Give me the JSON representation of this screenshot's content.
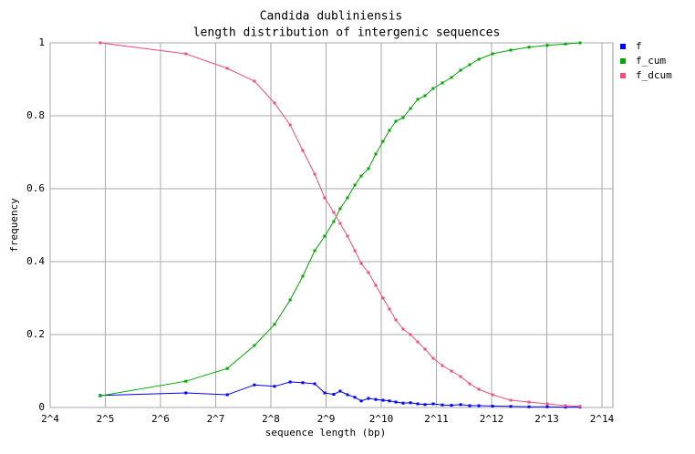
{
  "chart_data": {
    "type": "line",
    "title": "Candida dubliniensis",
    "subtitle": "length distribution of intergenic sequences",
    "x_label": "sequence length (bp)",
    "y_label": "frequency",
    "x_scale": "log2",
    "grid": true,
    "legend": "right",
    "x": [
      30,
      88,
      148,
      208,
      268,
      326,
      382,
      444,
      503,
      564,
      611,
      670,
      735,
      796,
      872,
      956,
      1048,
      1135,
      1230,
      1348,
      1478,
      1619,
      1774,
      1967,
      2206,
      2474,
      2775,
      3110,
      3490,
      4145,
      5210,
      6553,
      8237,
      10363,
      12444
    ],
    "series": [
      {
        "name": "f",
        "color": "#0000ff",
        "values": [
          0.033,
          0.04,
          0.035,
          0.062,
          0.058,
          0.07,
          0.068,
          0.065,
          0.04,
          0.036,
          0.045,
          0.035,
          0.028,
          0.018,
          0.025,
          0.022,
          0.02,
          0.018,
          0.015,
          0.012,
          0.013,
          0.01,
          0.008,
          0.01,
          0.007,
          0.006,
          0.008,
          0.005,
          0.005,
          0.004,
          0.003,
          0.002,
          0.002,
          0.001,
          0.001
        ]
      },
      {
        "name": "f_cum",
        "color": "#00a800",
        "values": [
          0.032,
          0.072,
          0.107,
          0.17,
          0.228,
          0.295,
          0.36,
          0.43,
          0.47,
          0.51,
          0.545,
          0.575,
          0.61,
          0.635,
          0.655,
          0.695,
          0.73,
          0.76,
          0.785,
          0.795,
          0.82,
          0.845,
          0.855,
          0.875,
          0.89,
          0.905,
          0.925,
          0.94,
          0.955,
          0.97,
          0.98,
          0.988,
          0.993,
          0.997,
          1.0
        ]
      },
      {
        "name": "f_dcum",
        "color": "#f0507a",
        "values": [
          1.0,
          0.97,
          0.93,
          0.895,
          0.835,
          0.775,
          0.705,
          0.64,
          0.575,
          0.535,
          0.505,
          0.47,
          0.43,
          0.395,
          0.37,
          0.335,
          0.3,
          0.27,
          0.24,
          0.215,
          0.2,
          0.18,
          0.16,
          0.135,
          0.115,
          0.1,
          0.085,
          0.065,
          0.05,
          0.035,
          0.02,
          0.015,
          0.01,
          0.005,
          0.003
        ]
      }
    ],
    "xlim": [
      16,
      16384
    ],
    "xticks": [
      {
        "value": 16,
        "label": "2^4"
      },
      {
        "value": 32,
        "label": "2^5"
      },
      {
        "value": 64,
        "label": "2^6"
      },
      {
        "value": 128,
        "label": "2^7"
      },
      {
        "value": 256,
        "label": "2^8"
      },
      {
        "value": 512,
        "label": "2^9"
      },
      {
        "value": 1024,
        "label": "2^10"
      },
      {
        "value": 2048,
        "label": "2^11"
      },
      {
        "value": 4096,
        "label": "2^12"
      },
      {
        "value": 8192,
        "label": "2^13"
      },
      {
        "value": 16384,
        "label": "2^14"
      }
    ],
    "ylim": [
      0,
      1
    ],
    "yticks": [
      0,
      0.2,
      0.4,
      0.6,
      0.8,
      1
    ]
  }
}
